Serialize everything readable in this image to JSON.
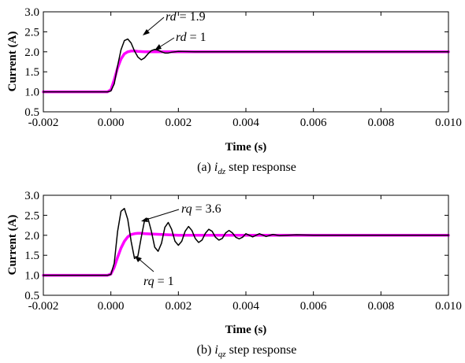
{
  "colors": {
    "black": "#000000",
    "magenta": "#ff00ff"
  },
  "chart_data": [
    {
      "type": "line",
      "caption": {
        "prefix": "(a) ",
        "var": "i",
        "sub": "dz",
        "suffix": " step response"
      },
      "xlabel": "Time (s)",
      "ylabel": "Current (A)",
      "xlim": [
        -0.002,
        0.01
      ],
      "ylim": [
        0.5,
        3.0
      ],
      "xticks": [
        -0.002,
        0.0,
        0.002,
        0.004,
        0.006,
        0.008,
        0.01
      ],
      "xtick_labels": [
        "-0.002",
        "0.000",
        "0.002",
        "0.004",
        "0.006",
        "0.008",
        "0.010"
      ],
      "yticks": [
        0.5,
        1.0,
        1.5,
        2.0,
        2.5,
        3.0
      ],
      "ytick_labels": [
        "0.5",
        "1.0",
        "1.5",
        "2.0",
        "2.5",
        "3.0"
      ],
      "series": [
        {
          "key": "rd_1_9",
          "color": "#000000",
          "annotation": {
            "var": "rd",
            "text": " = 1.9"
          },
          "x": [
            -0.002,
            -0.0001,
            0.0,
            0.0001,
            0.0002,
            0.0003,
            0.0004,
            0.0005,
            0.0006,
            0.0007,
            0.0008,
            0.0009,
            0.001,
            0.0011,
            0.0012,
            0.0013,
            0.0014,
            0.0015,
            0.0016,
            0.0017,
            0.0018,
            0.002,
            0.0025,
            0.003,
            0.01
          ],
          "y": [
            1.0,
            1.0,
            1.02,
            1.2,
            1.65,
            2.05,
            2.28,
            2.32,
            2.22,
            2.02,
            1.87,
            1.8,
            1.85,
            1.95,
            2.03,
            2.06,
            2.04,
            2.0,
            1.97,
            1.97,
            1.99,
            2.01,
            2.0,
            2.0,
            2.0
          ]
        },
        {
          "key": "rd_1",
          "color": "#ff00ff",
          "annotation": {
            "var": "rd",
            "text": " = 1"
          },
          "x": [
            -0.002,
            -0.0001,
            0.0,
            0.0001,
            0.0002,
            0.0003,
            0.0004,
            0.0005,
            0.0006,
            0.0007,
            0.0008,
            0.001,
            0.0015,
            0.002,
            0.01
          ],
          "y": [
            1.0,
            1.0,
            1.05,
            1.3,
            1.6,
            1.82,
            1.95,
            2.0,
            2.02,
            2.02,
            2.01,
            2.0,
            2.0,
            2.0,
            2.0
          ]
        }
      ]
    },
    {
      "type": "line",
      "caption": {
        "prefix": "(b) ",
        "var": "i",
        "sub": "qz",
        "suffix": " step response"
      },
      "xlabel": "Time (s)",
      "ylabel": "Current (A)",
      "xlim": [
        -0.002,
        0.01
      ],
      "ylim": [
        0.5,
        3.0
      ],
      "xticks": [
        -0.002,
        0.0,
        0.002,
        0.004,
        0.006,
        0.008,
        0.01
      ],
      "xtick_labels": [
        "-0.002",
        "0.000",
        "0.002",
        "0.004",
        "0.006",
        "0.008",
        "0.010"
      ],
      "yticks": [
        0.5,
        1.0,
        1.5,
        2.0,
        2.5,
        3.0
      ],
      "ytick_labels": [
        "0.5",
        "1.0",
        "1.5",
        "2.0",
        "2.5",
        "3.0"
      ],
      "series": [
        {
          "key": "rq_3_6",
          "color": "#000000",
          "annotation": {
            "var": "rq",
            "text": " = 3.6"
          },
          "x": [
            -0.002,
            -0.0001,
            0.0,
            0.0001,
            0.0002,
            0.0003,
            0.0004,
            0.0005,
            0.0006,
            0.0007,
            0.0008,
            0.0009,
            0.001,
            0.0011,
            0.0012,
            0.0013,
            0.0014,
            0.0015,
            0.0016,
            0.0017,
            0.0018,
            0.0019,
            0.002,
            0.0021,
            0.0022,
            0.0023,
            0.0024,
            0.0025,
            0.0026,
            0.0027,
            0.0028,
            0.0029,
            0.003,
            0.0031,
            0.0032,
            0.0033,
            0.0034,
            0.0035,
            0.0036,
            0.0037,
            0.0038,
            0.0039,
            0.004,
            0.0042,
            0.0044,
            0.0046,
            0.0048,
            0.005,
            0.0055,
            0.006,
            0.01
          ],
          "y": [
            1.0,
            1.0,
            1.02,
            1.3,
            2.1,
            2.6,
            2.67,
            2.4,
            1.85,
            1.42,
            1.48,
            1.95,
            2.38,
            2.42,
            2.1,
            1.7,
            1.6,
            1.8,
            2.2,
            2.32,
            2.15,
            1.85,
            1.75,
            1.85,
            2.1,
            2.22,
            2.12,
            1.92,
            1.82,
            1.88,
            2.05,
            2.15,
            2.1,
            1.95,
            1.88,
            1.92,
            2.06,
            2.12,
            2.06,
            1.95,
            1.91,
            1.95,
            2.04,
            1.96,
            2.04,
            1.97,
            2.02,
            1.99,
            2.01,
            2.0,
            2.0
          ]
        },
        {
          "key": "rq_1",
          "color": "#ff00ff",
          "annotation": {
            "var": "rq",
            "text": " = 1"
          },
          "x": [
            -0.002,
            -0.0001,
            0.0,
            0.0001,
            0.0002,
            0.0003,
            0.0004,
            0.0005,
            0.0006,
            0.0007,
            0.0008,
            0.0009,
            0.001,
            0.0015,
            0.002,
            0.01
          ],
          "y": [
            1.0,
            1.0,
            1.03,
            1.2,
            1.45,
            1.68,
            1.85,
            1.96,
            2.02,
            2.04,
            2.05,
            2.05,
            2.04,
            2.02,
            2.0,
            2.0
          ]
        }
      ]
    }
  ]
}
